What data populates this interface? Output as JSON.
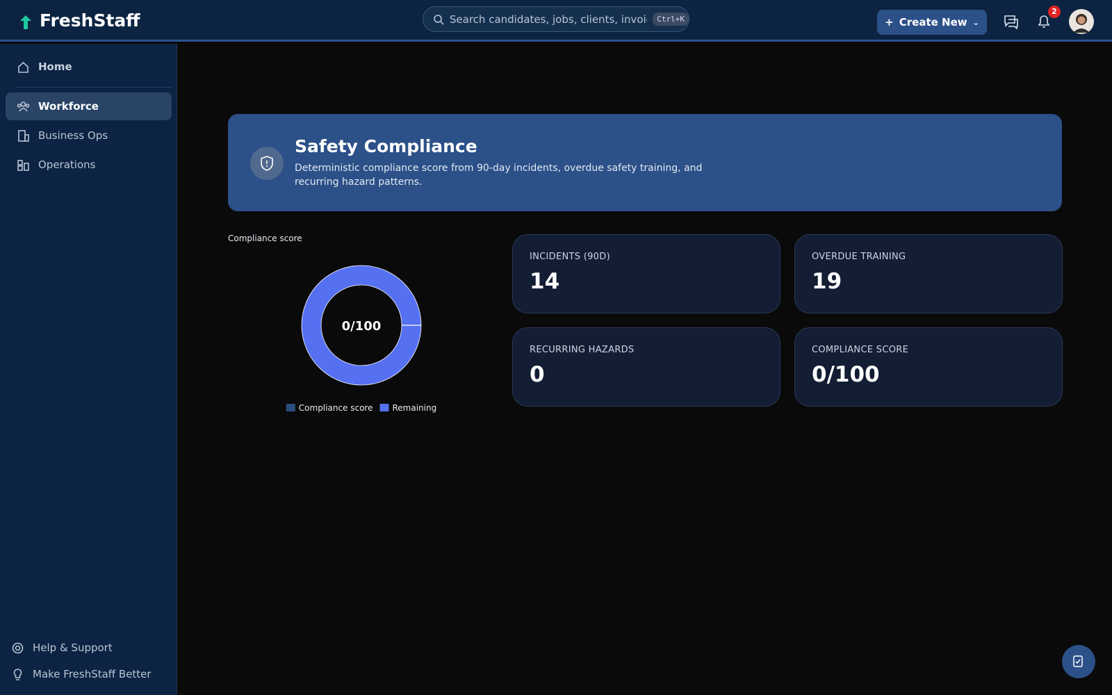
{
  "header": {
    "brand": "FreshStaff",
    "search_placeholder": "Search candidates, jobs, clients, invoices...",
    "search_shortcut": "Ctrl+K",
    "create_button": "Create New",
    "notification_count": 2
  },
  "sidebar": {
    "items": [
      "Home",
      "Workforce",
      "Business Ops",
      "Operations"
    ],
    "active": "Workforce",
    "footer": [
      "Help & Support",
      "Make FreshStaff Better"
    ]
  },
  "banner": {
    "title": "Safety Compliance",
    "description": "Deterministic compliance score from 90-day incidents, overdue safety training, and recurring hazard patterns."
  },
  "chart_data": {
    "type": "donut",
    "title": "Compliance score",
    "categories": [
      "Compliance score",
      "Remaining"
    ],
    "values": [
      0,
      100
    ],
    "colors": [
      "#2b4d7e",
      "#5570f1"
    ],
    "center_label": "0/100"
  },
  "stats": [
    {
      "label": "INCIDENTS (90D)",
      "value": 14
    },
    {
      "label": "OVERDUE TRAINING",
      "value": 19
    },
    {
      "label": "RECURRING HAZARDS",
      "value": 0
    },
    {
      "label": "COMPLIANCE SCORE",
      "value": "0/100"
    }
  ]
}
